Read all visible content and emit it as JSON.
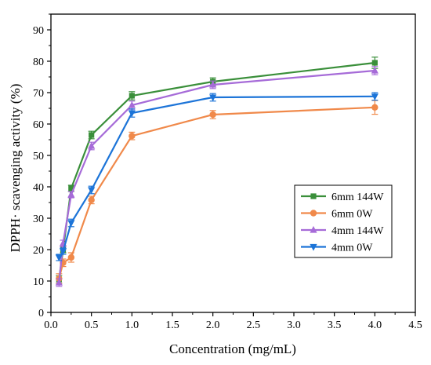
{
  "chart_data": {
    "type": "line",
    "xlabel": "Concentration (mg/mL)",
    "ylabel": "DPPH· scavenging activity (%)",
    "xlim": [
      0,
      4.5
    ],
    "ylim": [
      0,
      95
    ],
    "xticks": [
      0.0,
      0.5,
      1.0,
      1.5,
      2.0,
      2.5,
      3.0,
      3.5,
      4.0,
      4.5
    ],
    "xtick_labels": [
      "0.0",
      "0.5",
      "1.0",
      "1.5",
      "2.0",
      "2.5",
      "3.0",
      "3.5",
      "4.0",
      "4.5"
    ],
    "yticks": [
      0,
      10,
      20,
      30,
      40,
      50,
      60,
      70,
      80,
      90
    ],
    "ytick_labels": [
      "0",
      "10",
      "20",
      "30",
      "40",
      "50",
      "60",
      "70",
      "80",
      "90"
    ],
    "grid": false,
    "legend_position": "center-right",
    "x": [
      0.1,
      0.15,
      0.25,
      0.5,
      1.0,
      2.0,
      4.0
    ],
    "series": [
      {
        "name": "6mm 144W",
        "color": "#3a8f3a",
        "marker": "square",
        "values": [
          10.5,
          20.0,
          39.5,
          56.5,
          69.0,
          73.5,
          79.5
        ],
        "errors": [
          1.2,
          1.0,
          1.0,
          1.2,
          1.3,
          1.2,
          1.8
        ]
      },
      {
        "name": "6mm 0W",
        "color": "#f0894a",
        "marker": "circle",
        "values": [
          10.8,
          15.8,
          17.5,
          35.8,
          56.2,
          63.0,
          65.3
        ],
        "errors": [
          1.5,
          1.2,
          1.5,
          1.2,
          1.2,
          1.3,
          2.2
        ]
      },
      {
        "name": "4mm 144W",
        "color": "#a66bd8",
        "marker": "triangle-up",
        "values": [
          9.5,
          22.0,
          37.5,
          53.0,
          66.0,
          72.5,
          77.0
        ],
        "errors": [
          1.2,
          1.0,
          1.0,
          1.2,
          1.3,
          1.2,
          1.3
        ]
      },
      {
        "name": "4mm 0W",
        "color": "#1c74d8",
        "marker": "triangle-down",
        "values": [
          17.5,
          19.5,
          28.5,
          39.0,
          63.5,
          68.5,
          68.8
        ],
        "errors": [
          1.0,
          1.0,
          1.2,
          1.2,
          1.3,
          1.2,
          1.2
        ]
      }
    ]
  }
}
